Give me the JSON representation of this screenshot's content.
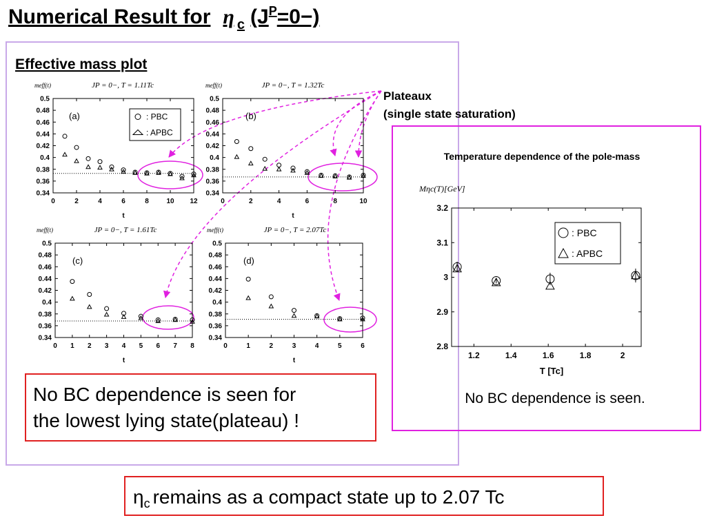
{
  "slide": {
    "title": {
      "text": "Numerical Result for",
      "symbol": "η",
      "sub": "c",
      "open": "(J",
      "sup": "P",
      "close": "=0−)"
    },
    "section": "Effective mass plot",
    "callout": [
      "Plateaux",
      "(single state saturation)"
    ],
    "note": [
      "No BC dependence is seen for",
      "the lowest lying state(plateau) !"
    ],
    "caption": "No BC dependence is seen.",
    "conclusion": {
      "symbol": "η",
      "sub": "c",
      "text": "remains as a compact state up to 2.07 Tc"
    }
  },
  "chart_data": [
    {
      "type": "scatter",
      "label": "(a)",
      "title": "JP = 0−, T = 1.11Tc",
      "ylabel": "meff(t)",
      "xlabel": "t",
      "legend": "upper right",
      "xlim": [
        0,
        12
      ],
      "xticks": [
        0,
        2,
        4,
        6,
        8,
        10,
        12
      ],
      "ylim": [
        0.34,
        0.5
      ],
      "yticks": [
        0.34,
        0.36,
        0.38,
        0.4,
        0.42,
        0.44,
        0.46,
        0.48,
        0.5
      ],
      "hline": 0.373,
      "x": [
        1,
        2,
        3,
        4,
        5,
        6,
        7,
        8,
        9,
        10,
        11,
        12
      ],
      "series": [
        {
          "name": ": PBC",
          "marker": "circle",
          "color": "#000000",
          "values": [
            0.436,
            0.417,
            0.398,
            0.393,
            0.384,
            0.379,
            0.375,
            0.374,
            0.375,
            0.373,
            0.368,
            0.372
          ]
        },
        {
          "name": ": APBC",
          "marker": "triangle",
          "color": "#000000",
          "values": [
            0.405,
            0.394,
            0.384,
            0.383,
            0.38,
            0.376,
            0.374,
            0.373,
            0.374,
            0.372,
            0.365,
            0.37
          ]
        }
      ]
    },
    {
      "type": "scatter",
      "label": "(b)",
      "title": "JP = 0−, T = 1.32Tc",
      "ylabel": "meff(t)",
      "xlabel": "t",
      "xlim": [
        0,
        10
      ],
      "xticks": [
        0,
        2,
        4,
        6,
        8,
        10
      ],
      "ylim": [
        0.34,
        0.5
      ],
      "yticks": [
        0.34,
        0.36,
        0.38,
        0.4,
        0.42,
        0.44,
        0.46,
        0.48,
        0.5
      ],
      "hline": 0.367,
      "x": [
        1,
        2,
        3,
        4,
        5,
        6,
        7,
        8,
        9,
        10
      ],
      "series": [
        {
          "name": ": PBC",
          "marker": "circle",
          "color": "#000000",
          "values": [
            0.427,
            0.415,
            0.397,
            0.387,
            0.382,
            0.376,
            0.37,
            0.369,
            0.367,
            0.37
          ]
        },
        {
          "name": ": APBC",
          "marker": "triangle",
          "color": "#000000",
          "values": [
            0.401,
            0.39,
            0.381,
            0.38,
            0.378,
            0.374,
            0.369,
            0.368,
            0.366,
            0.369
          ]
        }
      ]
    },
    {
      "type": "scatter",
      "label": "(c)",
      "title": "JP = 0−, T = 1.61Tc",
      "ylabel": "meff(t)",
      "xlabel": "t",
      "xlim": [
        0,
        8
      ],
      "xticks": [
        0,
        1,
        2,
        3,
        4,
        5,
        6,
        7,
        8
      ],
      "ylim": [
        0.34,
        0.5
      ],
      "yticks": [
        0.34,
        0.36,
        0.38,
        0.4,
        0.42,
        0.44,
        0.46,
        0.48,
        0.5
      ],
      "hline": 0.368,
      "x": [
        1,
        2,
        3,
        4,
        5,
        6,
        7,
        8
      ],
      "series": [
        {
          "name": ": PBC",
          "marker": "circle",
          "color": "#000000",
          "values": [
            0.435,
            0.413,
            0.389,
            0.381,
            0.376,
            0.37,
            0.371,
            0.37
          ]
        },
        {
          "name": ": APBC",
          "marker": "triangle",
          "color": "#000000",
          "values": [
            0.406,
            0.392,
            0.379,
            0.375,
            0.373,
            0.368,
            0.37,
            0.367
          ]
        }
      ]
    },
    {
      "type": "scatter",
      "label": "(d)",
      "title": "JP = 0−, T = 2.07Tc",
      "ylabel": "meff(t)",
      "xlabel": "t",
      "xlim": [
        0,
        6
      ],
      "xticks": [
        0,
        1,
        2,
        3,
        4,
        5,
        6
      ],
      "ylim": [
        0.34,
        0.5
      ],
      "yticks": [
        0.34,
        0.36,
        0.38,
        0.4,
        0.42,
        0.44,
        0.46,
        0.48,
        0.5
      ],
      "hline": 0.371,
      "x": [
        1,
        2,
        3,
        4,
        5,
        6
      ],
      "series": [
        {
          "name": ": PBC",
          "marker": "circle",
          "color": "#000000",
          "values": [
            0.439,
            0.409,
            0.386,
            0.377,
            0.372,
            0.373
          ]
        },
        {
          "name": ": APBC",
          "marker": "triangle",
          "color": "#000000",
          "values": [
            0.407,
            0.393,
            0.377,
            0.376,
            0.371,
            0.371
          ]
        }
      ]
    },
    {
      "type": "scatter",
      "title": "Temperature dependence of the pole-mass",
      "ylabel": "Mηc(T)[GeV]",
      "xlabel": "T [Tc]",
      "legend": "upper right",
      "xlim": [
        1.08,
        2.1
      ],
      "xticks": [
        1.2,
        1.4,
        1.6,
        1.8,
        2
      ],
      "ylim": [
        2.8,
        3.2
      ],
      "yticks": [
        2.8,
        2.9,
        3,
        3.1,
        3.2
      ],
      "x": [
        1.11,
        1.32,
        1.61,
        2.07
      ],
      "series": [
        {
          "name": ": PBC",
          "marker": "circle",
          "color": "#000000",
          "values": [
            3.03,
            2.99,
            2.995,
            3.005
          ],
          "errors": [
            0.015,
            0.008,
            0.018,
            0.02
          ]
        },
        {
          "name": ": APBC",
          "marker": "triangle",
          "color": "#000000",
          "values": [
            3.025,
            2.985,
            2.975,
            3.005
          ]
        }
      ]
    }
  ]
}
